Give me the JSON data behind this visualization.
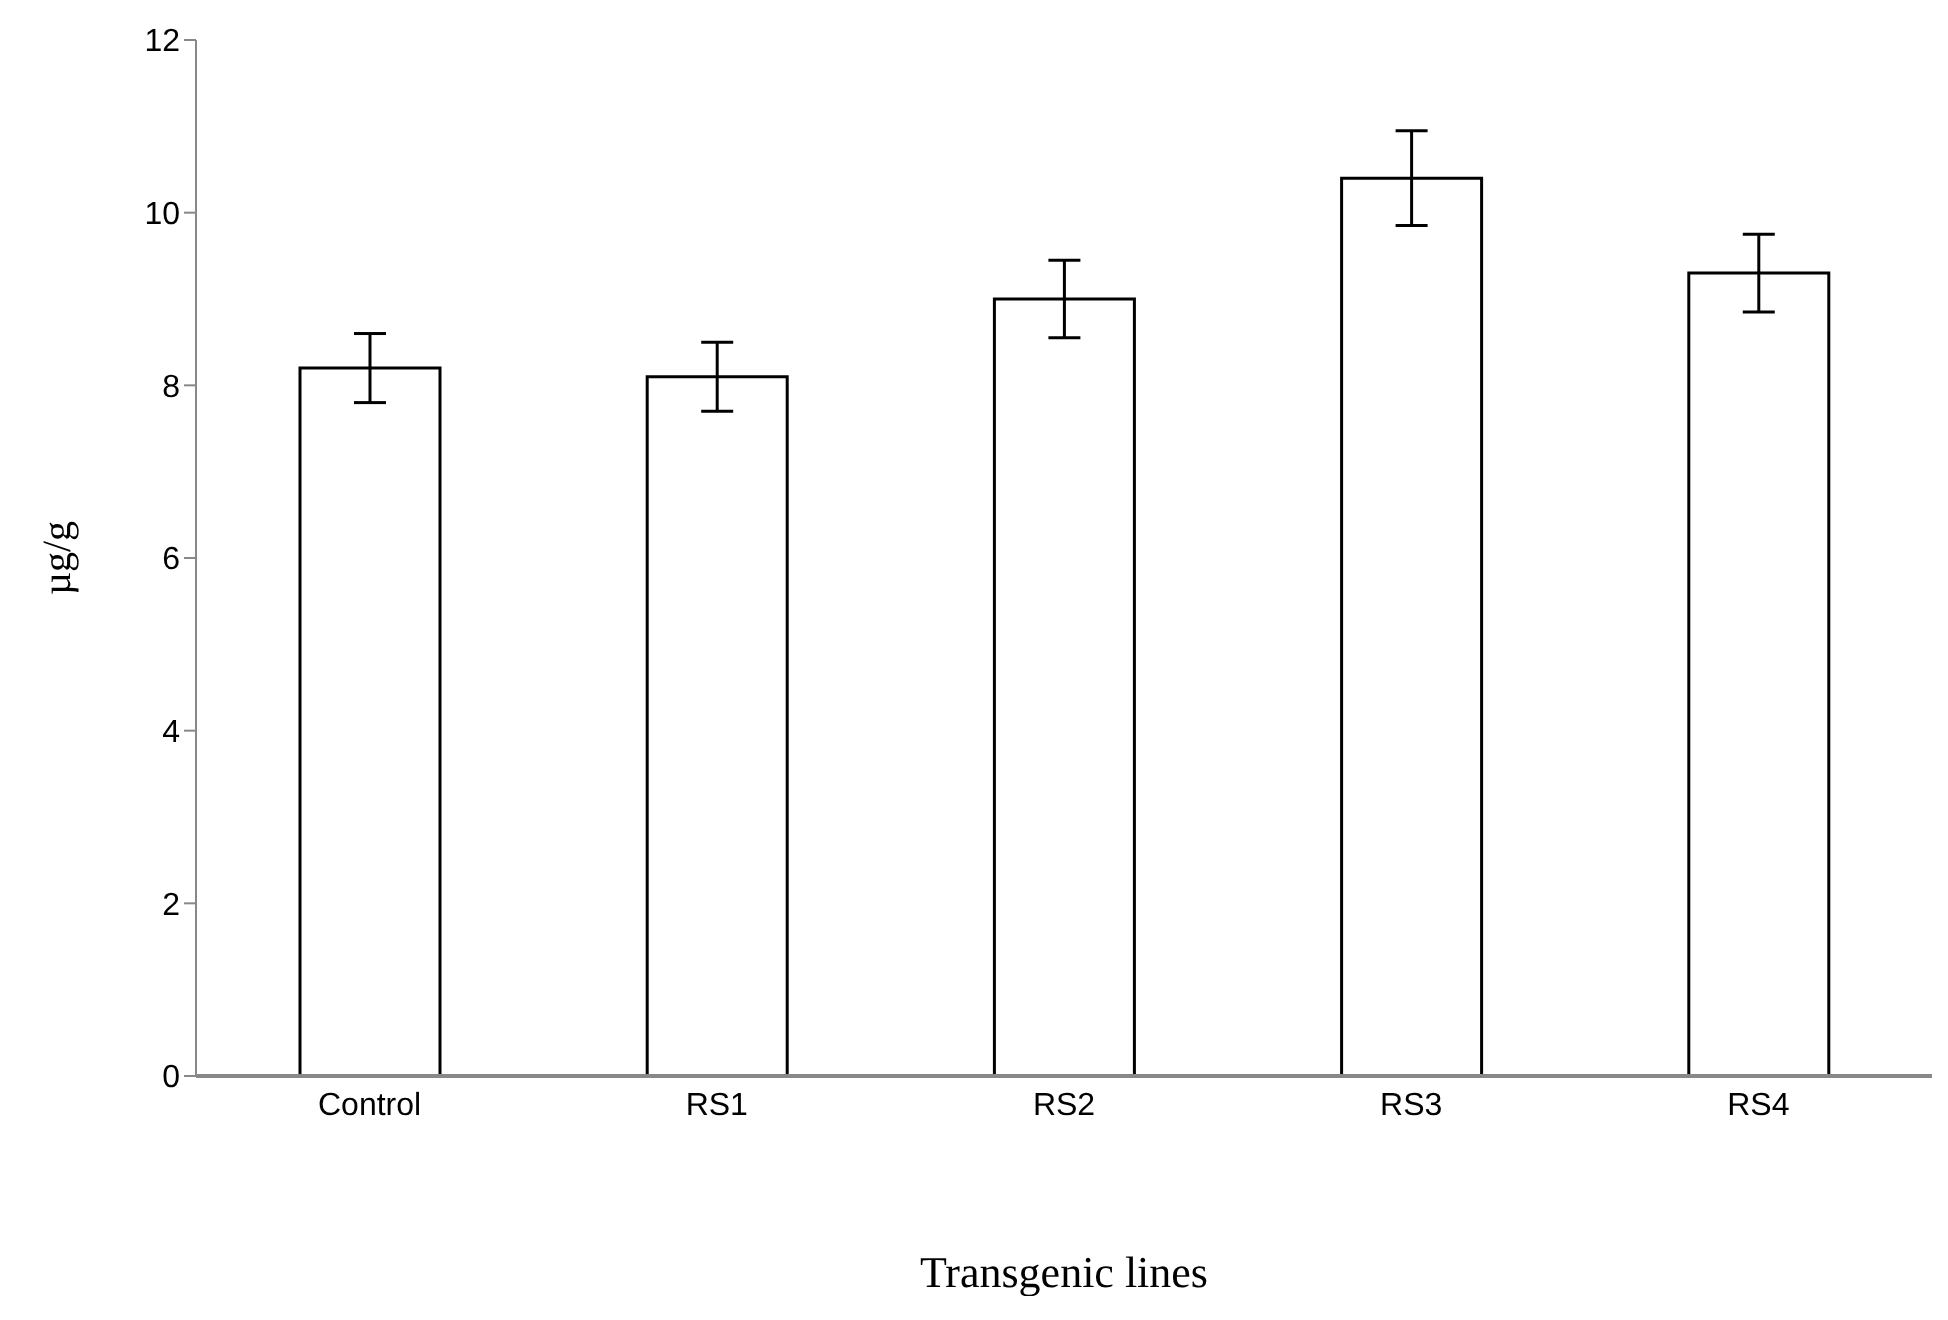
{
  "chart_data": {
    "type": "bar",
    "xlabel": "Transgenic lines",
    "ylabel": "µg/g",
    "categories": [
      "Control",
      "RS1",
      "RS2",
      "RS3",
      "RS4"
    ],
    "values": [
      8.2,
      8.1,
      9.0,
      10.4,
      9.3
    ],
    "errors": [
      0.4,
      0.4,
      0.45,
      0.55,
      0.45
    ],
    "color": "#ffffff",
    "ylim": [
      0,
      12
    ],
    "yticks": [
      0,
      2,
      4,
      6,
      8,
      10,
      12
    ],
    "grid": false,
    "legend": false
  }
}
